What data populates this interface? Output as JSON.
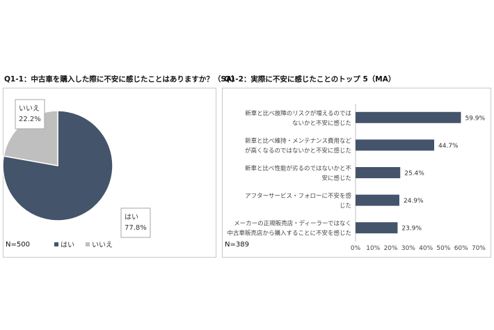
{
  "chart_data": [
    {
      "type": "pie",
      "title": "Q1-1：中古車を購入した際に不安に感じたことはありますか？（SA）",
      "categories": [
        "はい",
        "いいえ"
      ],
      "values": [
        77.8,
        22.2
      ],
      "value_labels": [
        "77.8%",
        "22.2%"
      ],
      "colors": [
        "#44546a",
        "#bfbfbf"
      ],
      "n_label": "N=500",
      "legend": {
        "position": "bottom",
        "items": [
          "はい",
          "いいえ"
        ]
      }
    },
    {
      "type": "bar",
      "orientation": "horizontal",
      "title": "Q1-2：実際に不安に感じたことのトップ 5（MA）",
      "categories": [
        "新車と比べ故障のリスクが増えるのでは|ないかと不安に感じた",
        "新車と比べ維持・メンテナンス費用など|が高くなるのではないかと不安に感じた",
        "新車と比べ性能が劣るのではないかと不|安に感じた",
        "アフターサービス・フォローに不安を感|じた",
        "メーカーの正規販売店・ディーラーではなく|中古車販売店から購入することに不安を感じた"
      ],
      "values": [
        59.9,
        44.7,
        25.4,
        24.9,
        23.9
      ],
      "value_labels": [
        "59.9%",
        "44.7%",
        "25.4%",
        "24.9%",
        "23.9%"
      ],
      "xlim": [
        0,
        70
      ],
      "xticks": [
        "0%",
        "10%",
        "20%",
        "30%",
        "40%",
        "50%",
        "60%",
        "70%"
      ],
      "color": "#44546a",
      "n_label": "N=389"
    }
  ]
}
